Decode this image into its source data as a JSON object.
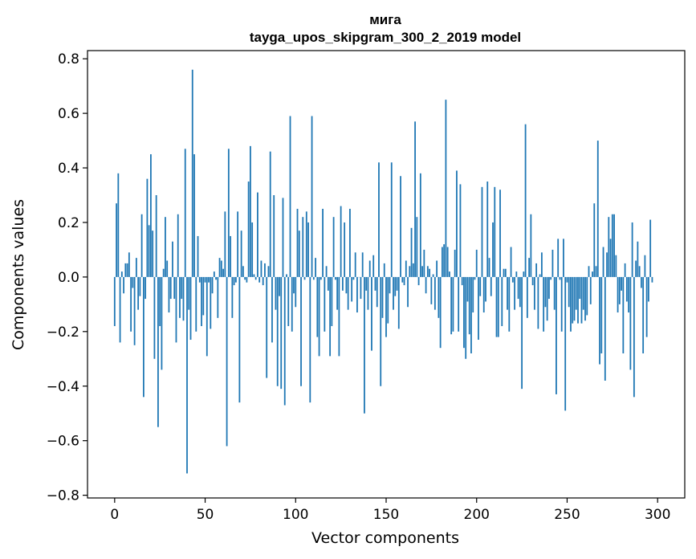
{
  "chart_data": {
    "type": "bar",
    "title_line1": "мига",
    "title_line2": "tayga_upos_skipgram_300_2_2019 model",
    "xlabel": "Vector components",
    "ylabel": "Components values",
    "xlim": [
      -15,
      315
    ],
    "ylim": [
      -0.81,
      0.83
    ],
    "xticks": [
      0,
      50,
      100,
      150,
      200,
      250,
      300
    ],
    "xtick_labels": [
      "0",
      "50",
      "100",
      "150",
      "200",
      "250",
      "300"
    ],
    "yticks": [
      -0.8,
      -0.6,
      -0.4,
      -0.2,
      0.0,
      0.2,
      0.4,
      0.6,
      0.8
    ],
    "ytick_labels": [
      "−0.8",
      "−0.6",
      "−0.4",
      "−0.2",
      "0.0",
      "0.2",
      "0.4",
      "0.6",
      "0.8"
    ],
    "bar_color": "#1f77b4",
    "values": [
      -0.18,
      0.27,
      0.38,
      -0.24,
      0.02,
      -0.06,
      0.05,
      0.05,
      0.09,
      -0.2,
      -0.04,
      -0.25,
      0.07,
      -0.12,
      -0.07,
      0.23,
      -0.44,
      -0.08,
      0.36,
      0.19,
      0.45,
      0.17,
      -0.3,
      0.3,
      -0.55,
      -0.18,
      -0.34,
      0.03,
      0.22,
      0.06,
      -0.13,
      -0.08,
      0.13,
      -0.08,
      -0.24,
      0.23,
      -0.15,
      -0.08,
      -0.16,
      0.47,
      -0.72,
      -0.12,
      -0.23,
      0.76,
      0.45,
      -0.2,
      0.15,
      -0.02,
      -0.18,
      -0.14,
      -0.02,
      -0.29,
      -0.02,
      -0.19,
      -0.06,
      0.02,
      -0.01,
      -0.15,
      0.07,
      0.06,
      0.03,
      0.24,
      -0.62,
      0.47,
      0.15,
      -0.15,
      -0.03,
      -0.02,
      0.24,
      -0.46,
      0.17,
      0.04,
      -0.01,
      -0.02,
      0.35,
      0.48,
      0.2,
      0.01,
      -0.01,
      0.31,
      -0.02,
      0.06,
      -0.03,
      0.05,
      -0.37,
      0.04,
      0.46,
      -0.24,
      0.3,
      -0.12,
      -0.4,
      -0.07,
      -0.41,
      0.29,
      -0.47,
      0.01,
      -0.18,
      0.59,
      -0.2,
      -0.06,
      -0.11,
      0.25,
      0.17,
      -0.4,
      0.22,
      -0.01,
      0.24,
      0.2,
      -0.46,
      0.59,
      -0.01,
      0.07,
      -0.22,
      -0.29,
      -0.01,
      0.25,
      -0.2,
      0.04,
      -0.05,
      -0.29,
      -0.18,
      0.22,
      -0.01,
      -0.12,
      -0.29,
      0.26,
      -0.05,
      0.2,
      -0.06,
      -0.12,
      0.25,
      -0.09,
      -0.01,
      0.09,
      -0.13,
      0.0,
      -0.08,
      0.09,
      -0.5,
      -0.05,
      -0.12,
      0.06,
      -0.27,
      0.08,
      -0.05,
      -0.11,
      0.42,
      -0.4,
      -0.15,
      0.05,
      -0.22,
      -0.17,
      -0.06,
      0.42,
      -0.12,
      -0.07,
      -0.05,
      -0.19,
      0.37,
      -0.02,
      -0.03,
      0.06,
      -0.11,
      0.04,
      0.18,
      0.05,
      0.57,
      0.22,
      -0.03,
      0.38,
      0.04,
      0.1,
      -0.06,
      0.04,
      0.03,
      -0.1,
      0.01,
      -0.12,
      0.06,
      -0.15,
      -0.26,
      0.11,
      0.12,
      0.65,
      0.11,
      0.02,
      -0.21,
      -0.2,
      0.1,
      0.39,
      -0.2,
      0.34,
      -0.03,
      -0.26,
      -0.3,
      -0.09,
      -0.21,
      -0.28,
      -0.13,
      -0.01,
      0.1,
      -0.23,
      -0.07,
      0.33,
      -0.13,
      -0.09,
      0.35,
      0.07,
      -0.07,
      0.2,
      0.33,
      -0.22,
      -0.22,
      0.32,
      -0.18,
      0.03,
      0.03,
      -0.12,
      -0.2,
      0.11,
      -0.02,
      -0.12,
      0.02,
      -0.08,
      -0.11,
      -0.41,
      0.02,
      0.56,
      -0.15,
      0.07,
      0.23,
      -0.03,
      -0.12,
      0.05,
      -0.19,
      0.01,
      0.09,
      -0.2,
      -0.11,
      -0.16,
      -0.08,
      -0.01,
      0.1,
      -0.12,
      -0.43,
      0.14,
      -0.01,
      -0.2,
      0.14,
      -0.49,
      -0.02,
      -0.11,
      -0.2,
      -0.17,
      -0.16,
      -0.12,
      -0.17,
      -0.08,
      -0.17,
      -0.12,
      -0.16,
      -0.14,
      0.04,
      -0.1,
      0.02,
      0.27,
      0.04,
      0.5,
      -0.32,
      -0.28,
      0.11,
      -0.38,
      0.09,
      0.22,
      0.14,
      0.23,
      0.23,
      0.08,
      -0.13,
      -0.1,
      -0.05,
      -0.28,
      0.05,
      -0.09,
      -0.13,
      -0.34,
      0.2,
      -0.44,
      0.06,
      0.13,
      0.04,
      -0.04,
      -0.28,
      0.08,
      -0.22,
      -0.09,
      0.21,
      -0.02
    ]
  }
}
